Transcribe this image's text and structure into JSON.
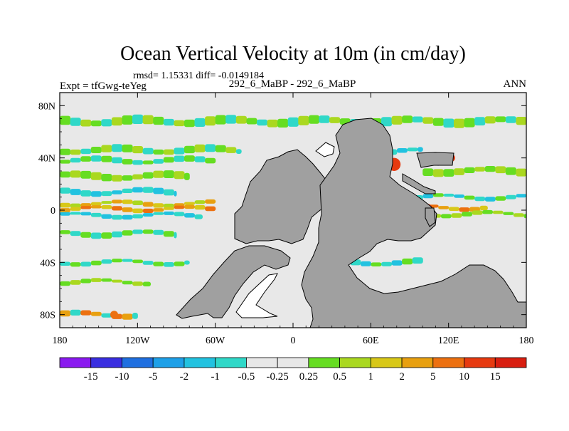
{
  "chart_data": {
    "type": "heatmap",
    "title": "Ocean Vertical Velocity at 10m (in cm/day)",
    "subtitle": "rmsd= 1.15331 diff= -0.0149184",
    "left_label": "Expt = tfGwg-teYeg",
    "center_label": "292_6_MaBP - 292_6_MaBP",
    "right_label": "ANN",
    "x_ticks": [
      {
        "value": -180,
        "label": "180"
      },
      {
        "value": -120,
        "label": "120W"
      },
      {
        "value": -60,
        "label": "60W"
      },
      {
        "value": 0,
        "label": "0"
      },
      {
        "value": 60,
        "label": "60E"
      },
      {
        "value": 120,
        "label": "120E"
      },
      {
        "value": 180,
        "label": "180"
      }
    ],
    "y_ticks": [
      {
        "value": 80,
        "label": "80N"
      },
      {
        "value": 40,
        "label": "40N"
      },
      {
        "value": 0,
        "label": "0"
      },
      {
        "value": -40,
        "label": "40S"
      },
      {
        "value": -80,
        "label": "80S"
      }
    ],
    "xlim": [
      -180,
      180
    ],
    "ylim": [
      -90,
      90
    ],
    "colorbar": {
      "labels": [
        "-15",
        "-10",
        "-5",
        "-2",
        "-1",
        "-0.5",
        "-0.25",
        "0.25",
        "0.5",
        "1",
        "2",
        "5",
        "10",
        "15"
      ],
      "colors": [
        "#8a1aef",
        "#3a2ee0",
        "#1f6fe0",
        "#1ea0e8",
        "#22c2e0",
        "#30d8c8",
        "#e8e8e8",
        "#e8e8e8",
        "#66dd22",
        "#aad820",
        "#d8c818",
        "#e8a010",
        "#ec7010",
        "#e63a10",
        "#d81e10"
      ]
    },
    "land_color": "#a0a0a0",
    "no_change_color": "#e8e8e8",
    "bands": [
      {
        "lat": 68,
        "width": 6,
        "lon0": -180,
        "lon1": 180,
        "colors": [
          "#66dd22",
          "#30d8c8",
          "#aad820"
        ]
      },
      {
        "lat": 46,
        "width": 5,
        "lon0": -180,
        "lon1": -40,
        "colors": [
          "#66dd22",
          "#aad820",
          "#30d8c8"
        ]
      },
      {
        "lat": 38,
        "width": 4,
        "lon0": -180,
        "lon1": -60,
        "colors": [
          "#66dd22",
          "#30d8c8"
        ]
      },
      {
        "lat": 26,
        "width": 5,
        "lon0": -180,
        "lon1": -80,
        "colors": [
          "#66dd22",
          "#aad820"
        ]
      },
      {
        "lat": 14,
        "width": 4,
        "lon0": -180,
        "lon1": -90,
        "colors": [
          "#30d8c8",
          "#22c2e0"
        ]
      },
      {
        "lat": 5,
        "width": 3,
        "lon0": -180,
        "lon1": -60,
        "colors": [
          "#d8c818",
          "#aad820",
          "#e8a010"
        ]
      },
      {
        "lat": 1,
        "width": 3,
        "lon0": -180,
        "lon1": -60,
        "colors": [
          "#e8a010",
          "#d8c818",
          "#ec7010"
        ]
      },
      {
        "lat": -4,
        "width": 3,
        "lon0": -180,
        "lon1": -70,
        "colors": [
          "#22c2e0",
          "#30d8c8"
        ]
      },
      {
        "lat": -18,
        "width": 4,
        "lon0": -180,
        "lon1": -90,
        "colors": [
          "#66dd22",
          "#30d8c8"
        ]
      },
      {
        "lat": -40,
        "width": 3,
        "lon0": -180,
        "lon1": -80,
        "colors": [
          "#30d8c8",
          "#66dd22"
        ]
      },
      {
        "lat": -55,
        "width": 3,
        "lon0": -180,
        "lon1": -110,
        "colors": [
          "#66dd22",
          "#aad820"
        ]
      },
      {
        "lat": -80,
        "width": 4,
        "lon0": -180,
        "lon1": -120,
        "colors": [
          "#e8a010",
          "#30d8c8",
          "#ec7010"
        ]
      },
      {
        "lat": 45,
        "width": 4,
        "lon0": 40,
        "lon1": 100,
        "colors": [
          "#30d8c8",
          "#22c2e0"
        ]
      },
      {
        "lat": 30,
        "width": 5,
        "lon0": 100,
        "lon1": 180,
        "colors": [
          "#66dd22",
          "#aad820"
        ]
      },
      {
        "lat": 20,
        "width": 3,
        "lon0": 20,
        "lon1": 60,
        "colors": [
          "#22c2e0",
          "#30d8c8"
        ]
      },
      {
        "lat": 10,
        "width": 3,
        "lon0": 20,
        "lon1": 180,
        "colors": [
          "#30d8c8",
          "#22c2e0",
          "#66dd22"
        ]
      },
      {
        "lat": 2,
        "width": 3,
        "lon0": 40,
        "lon1": 150,
        "colors": [
          "#e8a010",
          "#d8c818",
          "#ec7010"
        ]
      },
      {
        "lat": -3,
        "width": 3,
        "lon0": 50,
        "lon1": 180,
        "colors": [
          "#66dd22",
          "#aad820"
        ]
      },
      {
        "lat": -12,
        "width": 3,
        "lon0": 20,
        "lon1": 80,
        "colors": [
          "#1ea0e8",
          "#22c2e0",
          "#30d8c8"
        ]
      },
      {
        "lat": -20,
        "width": 3,
        "lon0": 30,
        "lon1": 80,
        "colors": [
          "#66dd22",
          "#30d8c8"
        ]
      },
      {
        "lat": -40,
        "width": 4,
        "lon0": 20,
        "lon1": 100,
        "colors": [
          "#30d8c8",
          "#22c2e0",
          "#66dd22"
        ]
      },
      {
        "lat": -80,
        "width": 4,
        "lon0": 140,
        "lon1": 180,
        "colors": [
          "#e8a010",
          "#30d8c8"
        ]
      }
    ],
    "hotspots": [
      {
        "lon": 78,
        "lat": 35,
        "r": 5,
        "color": "#e63a10"
      },
      {
        "lon": 72,
        "lat": 40,
        "r": 4,
        "color": "#1f6fe0"
      },
      {
        "lon": 112,
        "lat": 38,
        "r": 4,
        "color": "#3a2ee0"
      },
      {
        "lon": 103,
        "lat": 0,
        "r": 5,
        "color": "#e63a10"
      },
      {
        "lon": 122,
        "lat": 40,
        "r": 3,
        "color": "#e63a10"
      },
      {
        "lon": -138,
        "lat": -80,
        "r": 3,
        "color": "#ec7010"
      }
    ]
  }
}
